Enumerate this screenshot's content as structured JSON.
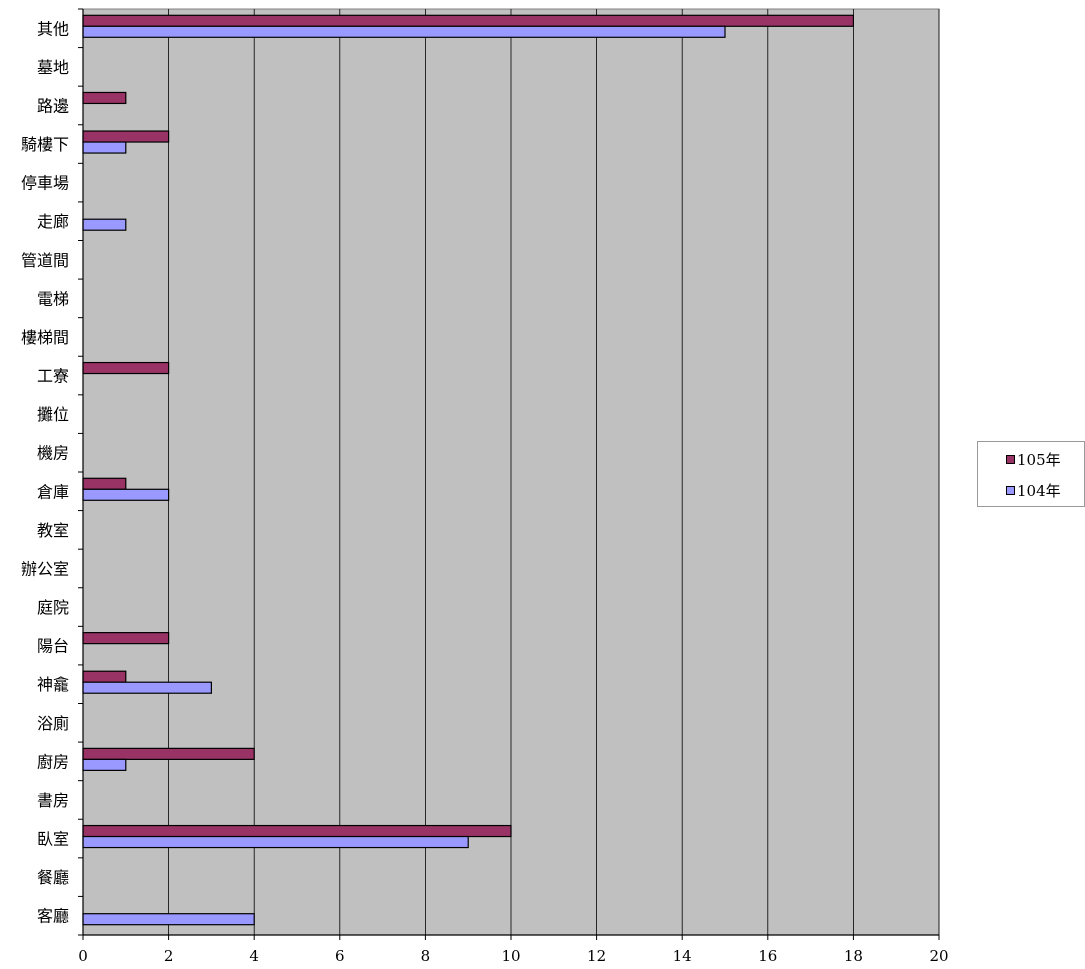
{
  "chart_data": {
    "type": "bar",
    "orientation": "horizontal",
    "title": "",
    "xlabel": "",
    "ylabel": "",
    "xlim": [
      0,
      20
    ],
    "x_ticks": [
      0,
      2,
      4,
      6,
      8,
      10,
      12,
      14,
      16,
      18,
      20
    ],
    "grid": true,
    "legend_position": "right",
    "categories": [
      "其他",
      "墓地",
      "路邊",
      "騎樓下",
      "停車場",
      "走廊",
      "管道間",
      "電梯",
      "樓梯間",
      "工寮",
      "攤位",
      "機房",
      "倉庫",
      "教室",
      "辦公室",
      "庭院",
      "陽台",
      "神龕",
      "浴廁",
      "廚房",
      "書房",
      "臥室",
      "餐廳",
      "客廳"
    ],
    "series": [
      {
        "name": "105年",
        "color": "#993366",
        "values": [
          18,
          0,
          1,
          2,
          0,
          0,
          0,
          0,
          0,
          2,
          0,
          0,
          1,
          0,
          0,
          0,
          2,
          1,
          0,
          4,
          0,
          10,
          0,
          0
        ]
      },
      {
        "name": "104年",
        "color": "#9999ff",
        "values": [
          15,
          0,
          0,
          1,
          0,
          1,
          0,
          0,
          0,
          0,
          0,
          0,
          2,
          0,
          0,
          0,
          0,
          3,
          0,
          1,
          0,
          9,
          0,
          4
        ]
      }
    ],
    "plot_background": "#c0c0c0"
  }
}
